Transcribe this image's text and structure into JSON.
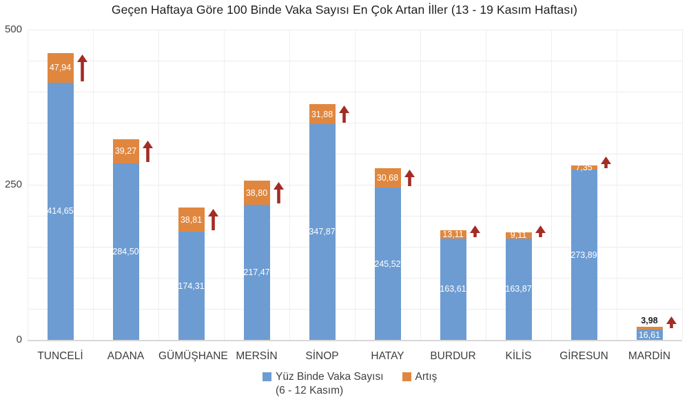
{
  "chart_data": {
    "type": "bar",
    "stacked": true,
    "orientation": "vertical",
    "title": "Geçen Haftaya Göre 100 Binde Vaka Sayısı En Çok Artan İller (13 - 19 Kasım Haftası)",
    "categories": [
      "TUNCELİ",
      "ADANA",
      "GÜMÜŞHANE",
      "MERSİN",
      "SİNOP",
      "HATAY",
      "BURDUR",
      "KİLİS",
      "GİRESUN",
      "MARDİN"
    ],
    "series": [
      {
        "name": "Yüz Binde Vaka Sayısı",
        "sublabel": "(6 - 12 Kasım)",
        "color": "#6D9CD2",
        "values": [
          414.65,
          284.5,
          174.31,
          217.47,
          347.87,
          245.52,
          163.61,
          163.87,
          273.89,
          16.61
        ],
        "labels": [
          "414,65",
          "284,50",
          "174,31",
          "217,47",
          "347,87",
          "245,52",
          "163,61",
          "163,87",
          "273,89",
          "16,61"
        ]
      },
      {
        "name": "Artış",
        "color": "#E0873F",
        "values": [
          47.94,
          39.27,
          38.81,
          38.8,
          31.88,
          30.68,
          13.11,
          9.11,
          7.35,
          3.98
        ],
        "labels": [
          "47,94",
          "39,27",
          "38,81",
          "38,80",
          "31,88",
          "30,68",
          "13,11",
          "9,11",
          "7,35",
          "3,98"
        ]
      }
    ],
    "ylim": [
      0,
      500
    ],
    "yticks": [
      {
        "value": 0,
        "label": "0"
      },
      {
        "value": 250,
        "label": "250"
      },
      {
        "value": 500,
        "label": "500"
      }
    ],
    "grid": true,
    "grid_step": 50,
    "legend_position": "bottom",
    "annotation": "dark red upward arrow beside each bar marking the weekly increase",
    "arrow_color": "#A32C24",
    "value_label_color": "#ffffff",
    "axis_text_color": "#404040"
  }
}
